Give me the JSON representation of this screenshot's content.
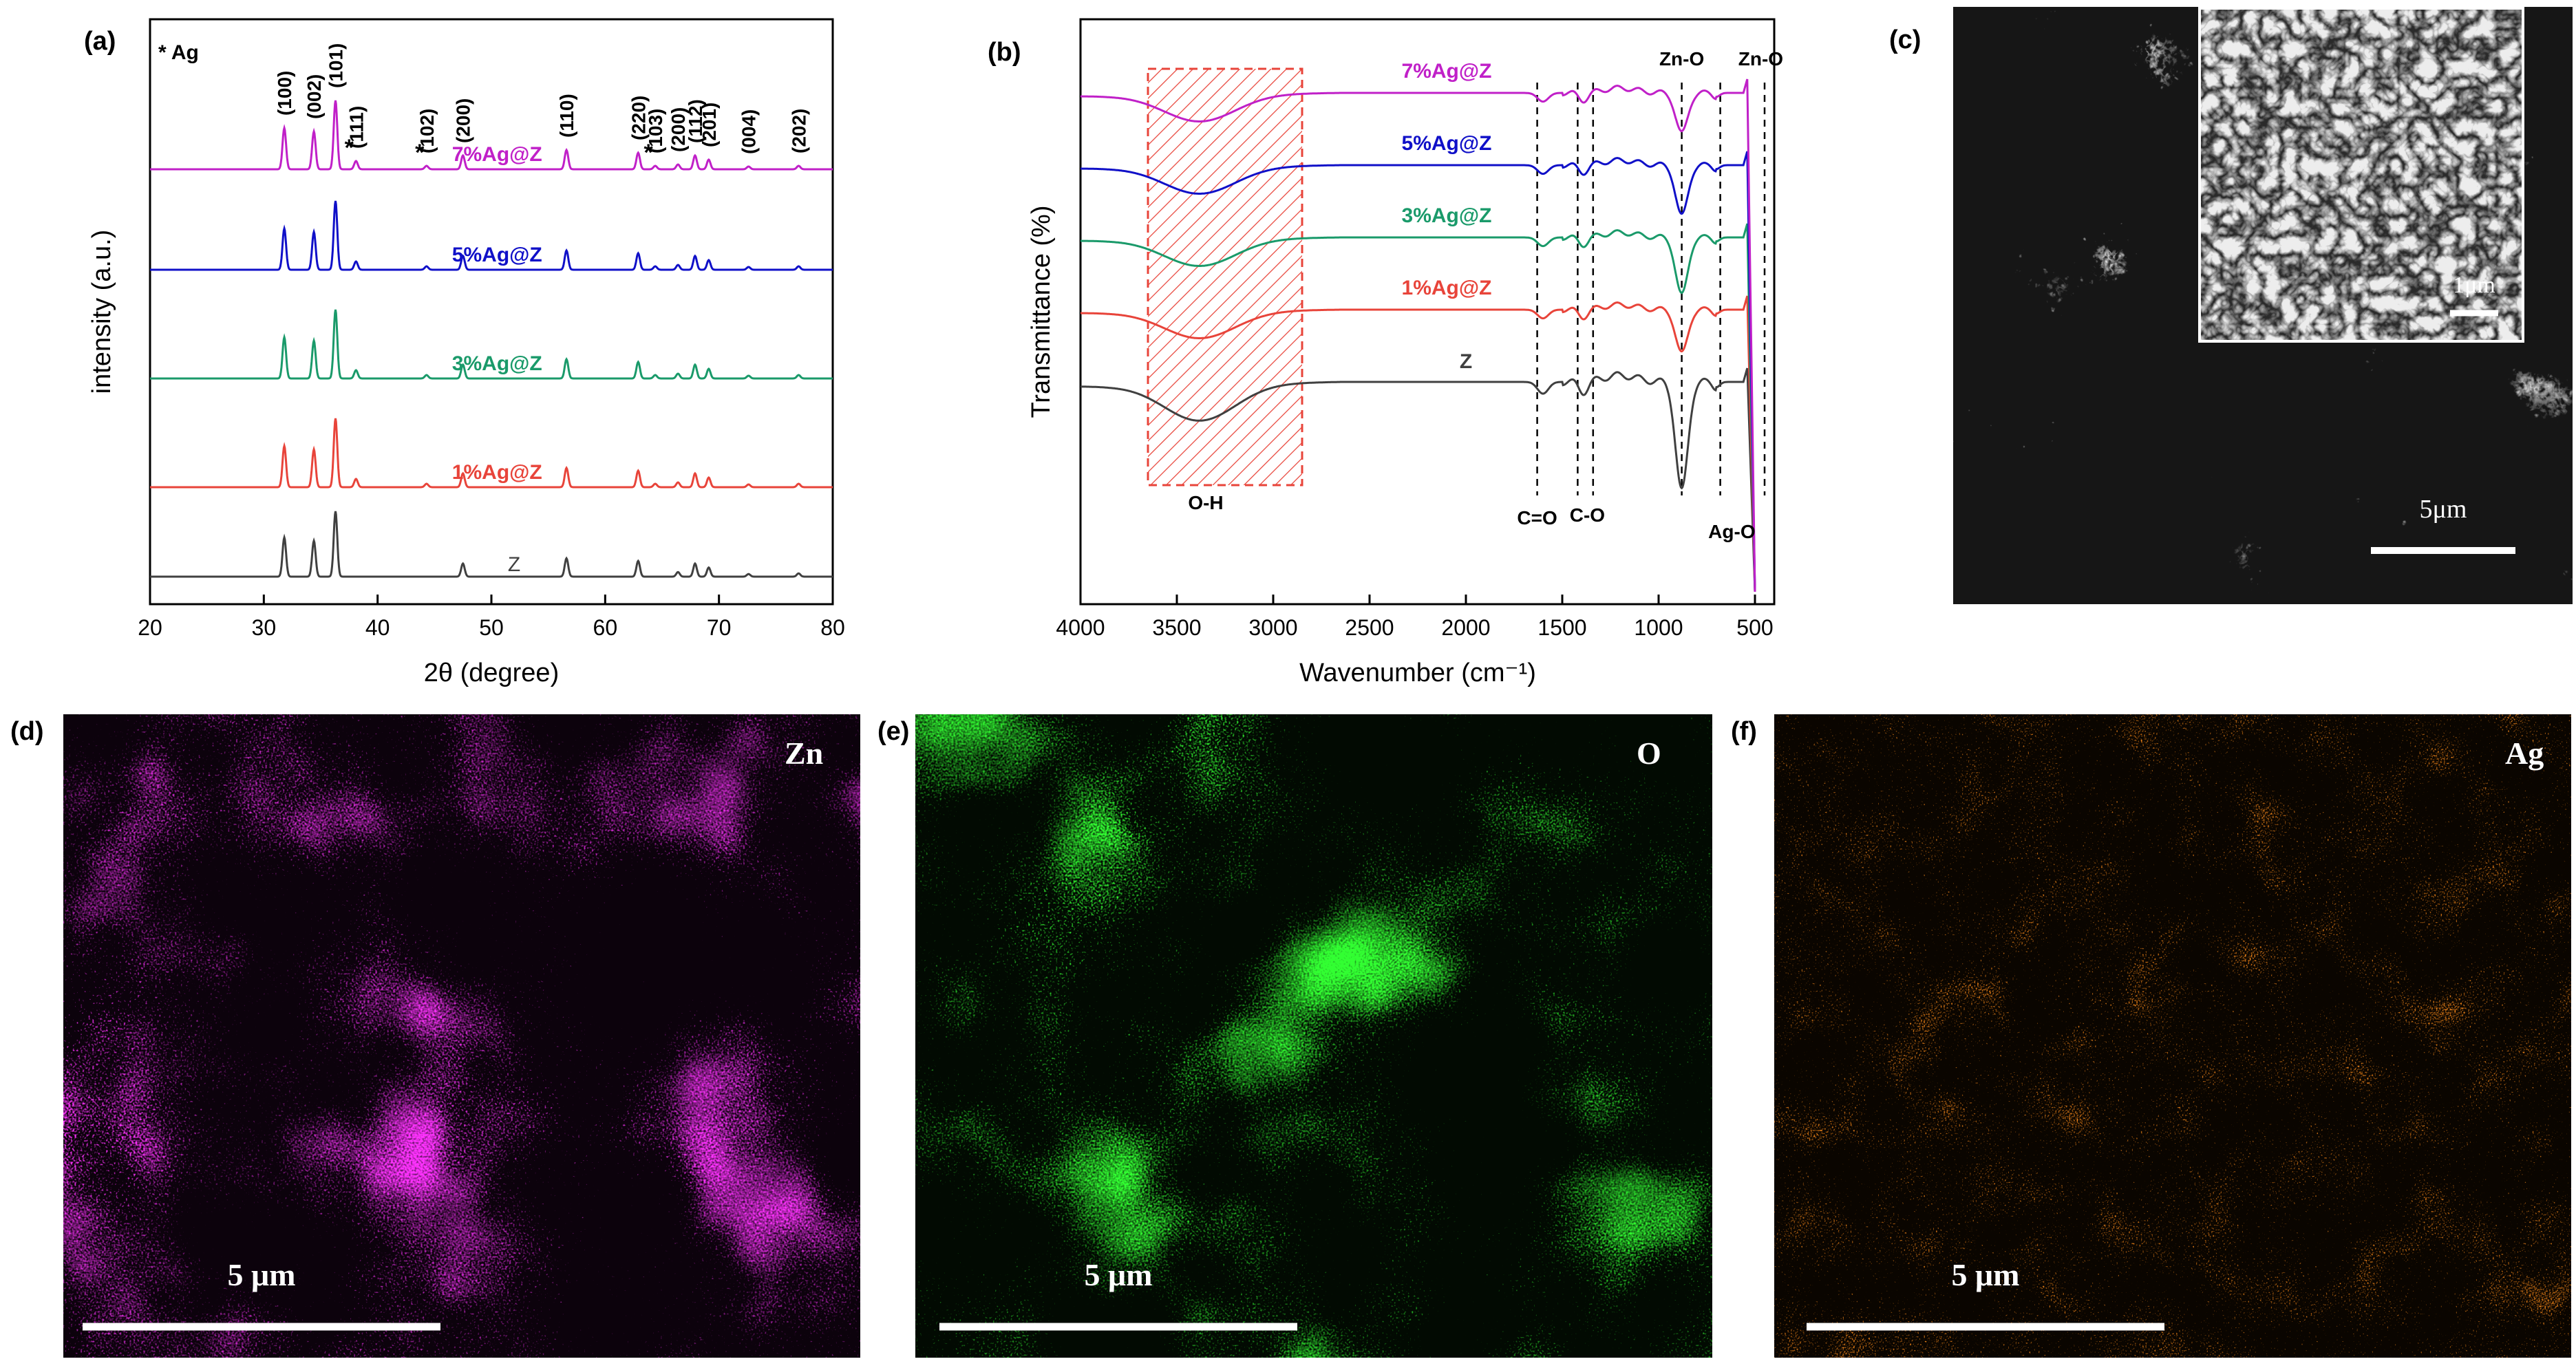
{
  "figure": {
    "panels": {
      "a": "(a)",
      "b": "(b)",
      "c": "(c)",
      "d": "(d)",
      "e": "(e)",
      "f": "(f)"
    }
  },
  "chart_data": [
    {
      "panel": "a",
      "type": "line",
      "title": "",
      "xlabel": "2θ (degree)",
      "ylabel": "intensity  (a.u.)",
      "xlim": [
        20,
        80
      ],
      "xticks": [
        20,
        30,
        40,
        50,
        60,
        70,
        80
      ],
      "legend_note": "* Ag",
      "peaks": [
        {
          "two_theta": 31.8,
          "label": "(100)",
          "height": 0.6
        },
        {
          "two_theta": 34.4,
          "label": "(002)",
          "height": 0.55
        },
        {
          "two_theta": 36.3,
          "label": "(101)",
          "height": 1.0
        },
        {
          "two_theta": 38.1,
          "label": "(111)",
          "height": 0.12,
          "ag": true
        },
        {
          "two_theta": 44.3,
          "label": "(102)",
          "height": 0.05,
          "ag": true
        },
        {
          "two_theta": 47.5,
          "label": "(200)",
          "height": 0.2
        },
        {
          "two_theta": 56.6,
          "label": "(110)",
          "height": 0.28
        },
        {
          "two_theta": 62.9,
          "label": "(220)",
          "height": 0.24
        },
        {
          "two_theta": 64.4,
          "label": "(103)",
          "height": 0.05,
          "ag": true
        },
        {
          "two_theta": 66.4,
          "label": "(200)",
          "height": 0.07
        },
        {
          "two_theta": 67.9,
          "label": "(112)",
          "height": 0.2
        },
        {
          "two_theta": 69.1,
          "label": "(201)",
          "height": 0.14
        },
        {
          "two_theta": 72.6,
          "label": "(004)",
          "height": 0.04
        },
        {
          "two_theta": 77.0,
          "label": "(202)",
          "height": 0.05
        }
      ],
      "series": [
        {
          "name": "Z",
          "color": "#404040",
          "offset": 0,
          "label_x": 52
        },
        {
          "name": "1%Ag@Z",
          "color": "#e8443a",
          "offset": 1,
          "label_x": 50
        },
        {
          "name": "3%Ag@Z",
          "color": "#1a9a6a",
          "offset": 2,
          "label_x": 50
        },
        {
          "name": "5%Ag@Z",
          "color": "#1010c8",
          "offset": 3,
          "label_x": 50
        },
        {
          "name": "7%Ag@Z",
          "color": "#c020c8",
          "offset": 4,
          "label_x": 50
        }
      ]
    },
    {
      "panel": "b",
      "type": "line",
      "title": "",
      "xlabel": "Wavenumber (cm⁻¹)",
      "ylabel": "Transmittance (%)",
      "xlim": [
        4000,
        400
      ],
      "xticks": [
        4000,
        3500,
        3000,
        2500,
        2000,
        1500,
        1000,
        500
      ],
      "oh_band": [
        3650,
        2850
      ],
      "annotations": [
        {
          "text": "O-H",
          "wavenumber": 3350
        },
        {
          "text": "C=O",
          "wavenumber": 1630
        },
        {
          "text": "C-O",
          "wavenumber": 1370
        },
        {
          "text": "Ag-O",
          "wavenumber": 620
        },
        {
          "text": "Zn-O",
          "wavenumber": 880
        },
        {
          "text": "Zn-O",
          "wavenumber": 470
        }
      ],
      "dashed_lines": [
        1630,
        1420,
        1340,
        880,
        680,
        450
      ],
      "series": [
        {
          "name": "Z",
          "color": "#404040",
          "offset": 0
        },
        {
          "name": "1%Ag@Z",
          "color": "#e8443a",
          "offset": 1
        },
        {
          "name": "3%Ag@Z",
          "color": "#1a9a6a",
          "offset": 2
        },
        {
          "name": "5%Ag@Z",
          "color": "#1010c8",
          "offset": 3
        },
        {
          "name": "7%Ag@Z",
          "color": "#c020c8",
          "offset": 4
        }
      ]
    }
  ],
  "sem": {
    "main_scale": "5μm",
    "inset_scale": "1μm"
  },
  "maps": [
    {
      "element": "Zn",
      "scale": "5 μm",
      "color": "#ff33ff"
    },
    {
      "element": "O",
      "scale": "5 μm",
      "color": "#33ff33"
    },
    {
      "element": "Ag",
      "scale": "5 μm",
      "color": "#ff8c1a"
    }
  ]
}
